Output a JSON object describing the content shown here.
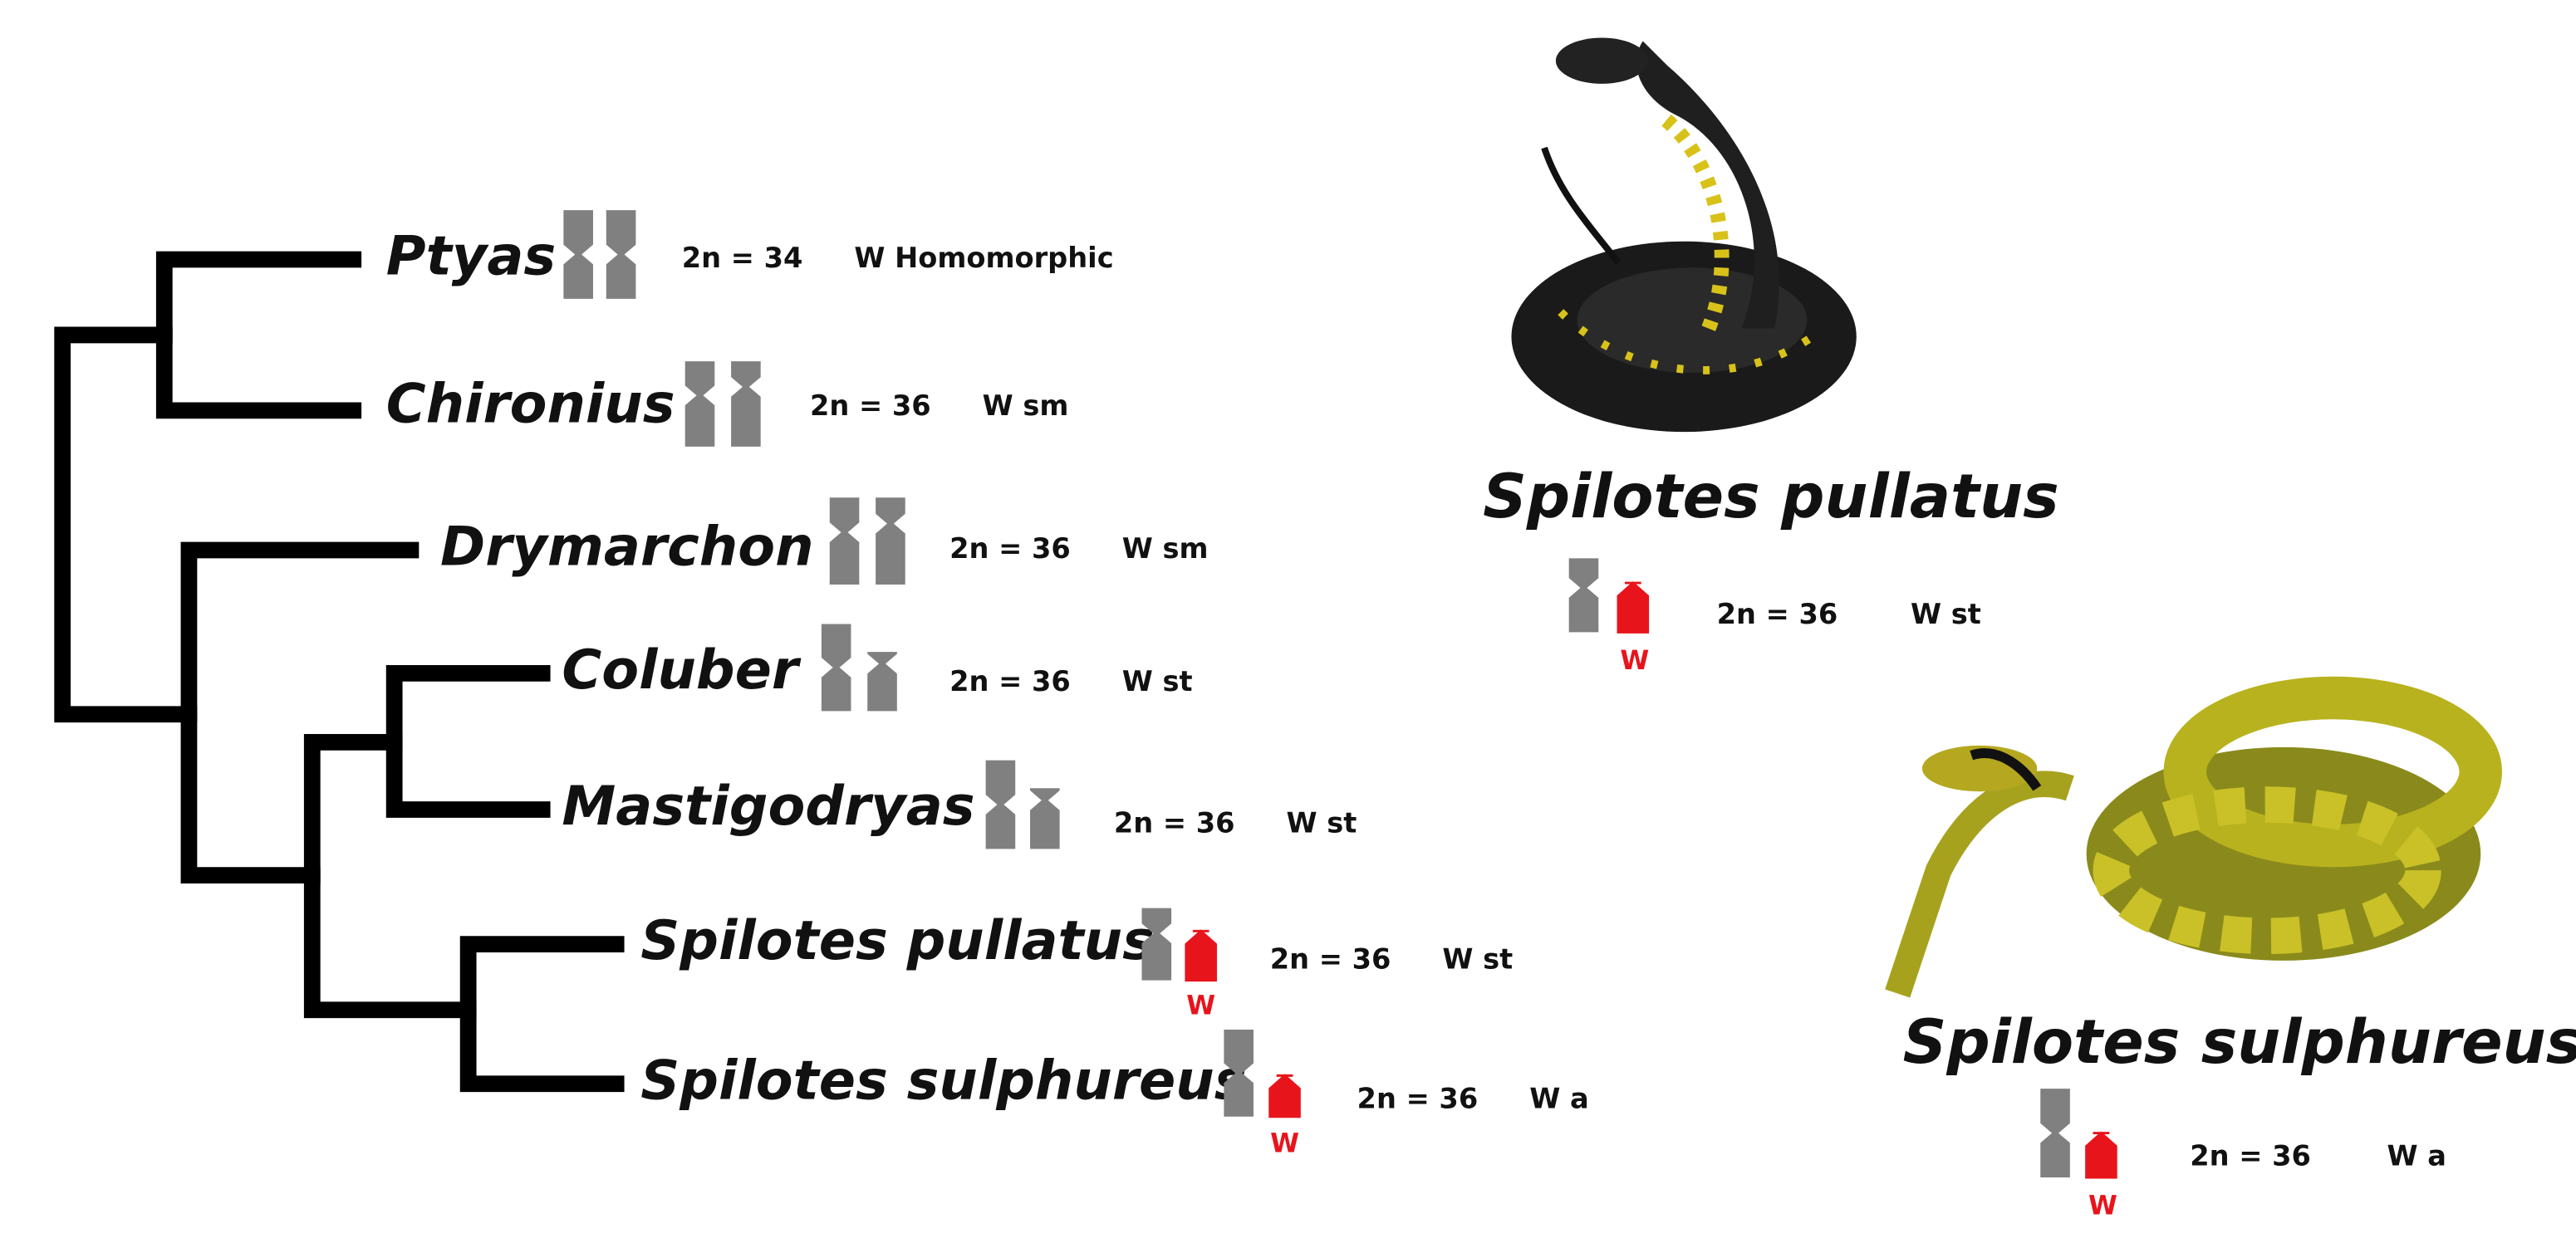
{
  "tree": {
    "taxa": [
      {
        "name": "Ptyas",
        "karyotype": "2n = 34",
        "w_type": "W Homomorphic"
      },
      {
        "name": "Chironius",
        "karyotype": "2n = 36",
        "w_type": "W sm"
      },
      {
        "name": "Drymarchon",
        "karyotype": "2n = 36",
        "w_type": "W sm"
      },
      {
        "name": "Coluber",
        "karyotype": "2n = 36",
        "w_type": "W st"
      },
      {
        "name": "Mastigodryas",
        "karyotype": "2n = 36",
        "w_type": "W st"
      },
      {
        "name": "Spilotes pullatus",
        "w_label": "W",
        "karyotype": "2n = 36",
        "w_type": "W st"
      },
      {
        "name": "Spilotes sulphureus",
        "w_label": "W",
        "karyotype": "2n = 36",
        "w_type": "W a"
      }
    ]
  },
  "featured": [
    {
      "name": "Spilotes pullatus",
      "w_label": "W",
      "karyotype": "2n = 36",
      "w_type": "W st"
    },
    {
      "name": "Spilotes sulphureus",
      "w_label": "W",
      "karyotype": "2n = 36",
      "w_type": "W a"
    }
  ]
}
